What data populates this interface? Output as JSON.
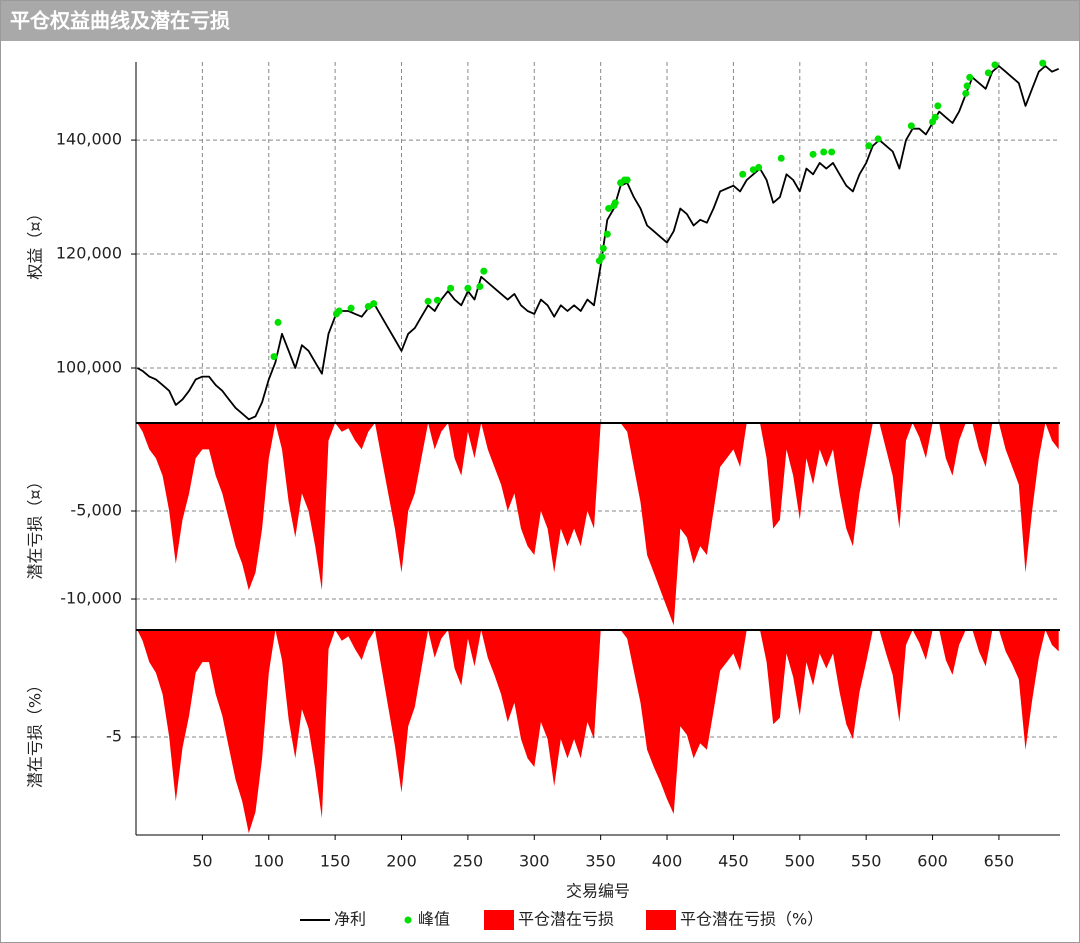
{
  "chart_data": [
    {
      "type": "line",
      "title": "平仓权益曲线及潜在亏损",
      "ylabel": "权益（¤）",
      "xlim": [
        0,
        696
      ],
      "xticks": [
        50,
        100,
        150,
        200,
        250,
        300,
        350,
        400,
        450,
        500,
        550,
        600,
        650
      ],
      "xgrid": true,
      "ylim": [
        90350,
        153700
      ],
      "yticks": [
        {
          "value": 100000,
          "label": "100,000"
        },
        {
          "value": 120000,
          "label": "120,000"
        },
        {
          "value": 140000,
          "label": "140,000"
        }
      ],
      "grid": true,
      "series": [
        {
          "name": "净利",
          "type": "line",
          "color": "#000000",
          "x": [
            1,
            5,
            10,
            15,
            20,
            25,
            30,
            35,
            40,
            45,
            50,
            55,
            60,
            65,
            70,
            75,
            80,
            85,
            90,
            95,
            100,
            105,
            110,
            115,
            120,
            125,
            130,
            135,
            140,
            145,
            150,
            155,
            160,
            165,
            170,
            175,
            180,
            185,
            190,
            195,
            200,
            205,
            210,
            215,
            220,
            225,
            230,
            235,
            240,
            245,
            250,
            255,
            260,
            265,
            270,
            275,
            280,
            285,
            290,
            295,
            300,
            305,
            310,
            315,
            320,
            325,
            330,
            335,
            340,
            345,
            350,
            355,
            360,
            365,
            370,
            375,
            380,
            385,
            390,
            395,
            400,
            405,
            410,
            415,
            420,
            425,
            430,
            435,
            440,
            445,
            450,
            455,
            460,
            465,
            470,
            475,
            480,
            485,
            490,
            495,
            500,
            505,
            510,
            515,
            520,
            525,
            530,
            535,
            540,
            545,
            550,
            555,
            560,
            565,
            570,
            575,
            580,
            585,
            590,
            595,
            600,
            605,
            610,
            615,
            620,
            625,
            630,
            635,
            640,
            645,
            650,
            655,
            660,
            665,
            670,
            675,
            680,
            685,
            690,
            695
          ],
          "values": [
            100000,
            99500,
            98500,
            98000,
            97000,
            96000,
            93500,
            94500,
            96000,
            98000,
            98500,
            98500,
            97000,
            96000,
            94500,
            93000,
            92000,
            91000,
            91500,
            94000,
            98000,
            101000,
            106000,
            103000,
            100000,
            104000,
            103000,
            101000,
            99000,
            106000,
            109000,
            110000,
            110000,
            109500,
            109000,
            110500,
            111000,
            109000,
            107000,
            105000,
            103000,
            106000,
            107000,
            109000,
            111000,
            110000,
            112000,
            113500,
            112000,
            111000,
            113500,
            112000,
            116000,
            115000,
            114000,
            113000,
            112000,
            113000,
            111000,
            110000,
            109500,
            112000,
            111000,
            109000,
            111000,
            110000,
            111000,
            110000,
            112000,
            111000,
            118000,
            126000,
            128000,
            132000,
            132500,
            130000,
            128000,
            125000,
            124000,
            123000,
            122000,
            124000,
            128000,
            127000,
            125000,
            126000,
            125500,
            128000,
            131000,
            131500,
            132000,
            131000,
            133000,
            134000,
            135000,
            133000,
            129000,
            130000,
            134000,
            133000,
            131000,
            135000,
            134000,
            136000,
            135000,
            136000,
            134000,
            132000,
            131000,
            134000,
            136000,
            139000,
            140000,
            139000,
            138000,
            135000,
            140000,
            142000,
            142000,
            141000,
            143000,
            145000,
            144000,
            143000,
            145000,
            148000,
            151000,
            150000,
            149000,
            152000,
            153000,
            152000,
            151000,
            150000,
            146000,
            149000,
            152000,
            153000,
            152000,
            152500
          ]
        },
        {
          "name": "峰值",
          "type": "scatter",
          "color": "#00e000",
          "x": [
            104,
            107,
            151,
            153,
            162,
            175,
            179,
            220,
            227,
            237,
            250,
            259,
            262,
            349,
            351,
            352,
            355,
            356,
            360,
            361,
            365,
            368,
            370,
            457,
            465,
            469,
            486,
            510,
            518,
            524,
            552,
            559,
            584,
            600,
            602,
            604,
            625,
            626,
            628,
            642,
            647,
            683
          ],
          "values": [
            102000,
            108000,
            109500,
            110000,
            110500,
            110800,
            111300,
            111700,
            111900,
            114000,
            114000,
            114300,
            117000,
            118800,
            119500,
            121000,
            123500,
            128000,
            128500,
            129000,
            132500,
            133000,
            133000,
            134000,
            134800,
            135200,
            136800,
            137500,
            137900,
            137900,
            139000,
            140200,
            142500,
            143200,
            144000,
            146000,
            148200,
            149500,
            151000,
            151800,
            153200,
            153500
          ]
        }
      ]
    },
    {
      "type": "area",
      "ylabel": "潜在亏损（¤）",
      "xlim": [
        0,
        696
      ],
      "xticks": [
        50,
        100,
        150,
        200,
        250,
        300,
        350,
        400,
        450,
        500,
        550,
        600,
        650
      ],
      "ylim": [
        -11760,
        0
      ],
      "yticks": [
        {
          "value": -5000,
          "label": "-5,000"
        },
        {
          "value": -10000,
          "label": "-10,000"
        }
      ],
      "grid": true,
      "series": [
        {
          "name": "平仓潜在亏损",
          "type": "area",
          "color": "#ff0000",
          "x": [
            1,
            5,
            10,
            15,
            20,
            25,
            30,
            35,
            40,
            45,
            50,
            55,
            60,
            65,
            70,
            75,
            80,
            85,
            90,
            95,
            100,
            105,
            110,
            115,
            120,
            125,
            130,
            135,
            140,
            145,
            150,
            155,
            160,
            165,
            170,
            175,
            180,
            185,
            190,
            195,
            200,
            205,
            210,
            215,
            220,
            225,
            230,
            235,
            240,
            245,
            250,
            255,
            260,
            265,
            270,
            275,
            280,
            285,
            290,
            295,
            300,
            305,
            310,
            315,
            320,
            325,
            330,
            335,
            340,
            345,
            350,
            355,
            360,
            365,
            370,
            375,
            380,
            385,
            390,
            395,
            400,
            405,
            410,
            415,
            420,
            425,
            430,
            435,
            440,
            445,
            450,
            455,
            460,
            465,
            470,
            475,
            480,
            485,
            490,
            495,
            500,
            505,
            510,
            515,
            520,
            525,
            530,
            535,
            540,
            545,
            550,
            555,
            560,
            565,
            570,
            575,
            580,
            585,
            590,
            595,
            600,
            605,
            610,
            615,
            620,
            625,
            630,
            635,
            640,
            645,
            650,
            655,
            660,
            665,
            670,
            675,
            680,
            685,
            690,
            695
          ],
          "values": [
            0,
            -500,
            -1500,
            -2000,
            -3000,
            -5000,
            -8000,
            -5500,
            -4000,
            -2000,
            -1500,
            -1500,
            -3000,
            -4000,
            -5500,
            -7000,
            -8000,
            -9500,
            -8500,
            -6000,
            -2000,
            0,
            -1500,
            -4500,
            -6500,
            -4000,
            -5000,
            -7000,
            -9500,
            -1000,
            0,
            -500,
            -300,
            -1000,
            -1500,
            -500,
            0,
            -2000,
            -4000,
            -6000,
            -8500,
            -5000,
            -4000,
            -2000,
            0,
            -1500,
            -500,
            0,
            -2000,
            -3000,
            -500,
            -2000,
            0,
            -1500,
            -2500,
            -3500,
            -5000,
            -4000,
            -6000,
            -7000,
            -7500,
            -5000,
            -6000,
            -8500,
            -6000,
            -7000,
            -6000,
            -7000,
            -5000,
            -6000,
            0,
            0,
            0,
            0,
            -500,
            -2500,
            -4500,
            -7500,
            -8500,
            -9500,
            -10500,
            -11500,
            -6000,
            -6500,
            -8000,
            -7000,
            -7500,
            -5000,
            -2500,
            -2000,
            -1500,
            -2500,
            0,
            0,
            0,
            -2000,
            -6000,
            -5500,
            -1500,
            -3000,
            -5500,
            -2000,
            -3500,
            -1500,
            -2500,
            -1500,
            -4000,
            -6000,
            -7000,
            -4000,
            -2000,
            0,
            0,
            -1500,
            -3000,
            -6000,
            -1000,
            0,
            -800,
            -2000,
            0,
            0,
            -2000,
            -3000,
            -1000,
            0,
            0,
            -1500,
            -2500,
            0,
            0,
            -1500,
            -2500,
            -3500,
            -8500,
            -5000,
            -2000,
            0,
            -1000,
            -1500
          ]
        }
      ]
    },
    {
      "type": "area",
      "ylabel": "潜在亏损（%）",
      "xlabel": "交易编号",
      "xlim": [
        0,
        696
      ],
      "xticks": [
        50,
        100,
        150,
        200,
        250,
        300,
        350,
        400,
        450,
        500,
        550,
        600,
        650
      ],
      "xtick_labels": true,
      "ylim": [
        -9.58,
        0
      ],
      "yticks": [
        -5
      ],
      "grid": true,
      "series": [
        {
          "name": "平仓潜在亏损（%）",
          "type": "area",
          "color": "#ff0000",
          "x": [
            1,
            5,
            10,
            15,
            20,
            25,
            30,
            35,
            40,
            45,
            50,
            55,
            60,
            65,
            70,
            75,
            80,
            85,
            90,
            95,
            100,
            105,
            110,
            115,
            120,
            125,
            130,
            135,
            140,
            145,
            150,
            155,
            160,
            165,
            170,
            175,
            180,
            185,
            190,
            195,
            200,
            205,
            210,
            215,
            220,
            225,
            230,
            235,
            240,
            245,
            250,
            255,
            260,
            265,
            270,
            275,
            280,
            285,
            290,
            295,
            300,
            305,
            310,
            315,
            320,
            325,
            330,
            335,
            340,
            345,
            350,
            355,
            360,
            365,
            370,
            375,
            380,
            385,
            390,
            395,
            400,
            405,
            410,
            415,
            420,
            425,
            430,
            435,
            440,
            445,
            450,
            455,
            460,
            465,
            470,
            475,
            480,
            485,
            490,
            495,
            500,
            505,
            510,
            515,
            520,
            525,
            530,
            535,
            540,
            545,
            550,
            555,
            560,
            565,
            570,
            575,
            580,
            585,
            590,
            595,
            600,
            605,
            610,
            615,
            620,
            625,
            630,
            635,
            640,
            645,
            650,
            655,
            660,
            665,
            670,
            675,
            680,
            685,
            690,
            695
          ],
          "values": [
            0,
            -0.5,
            -1.5,
            -2,
            -3,
            -5,
            -8,
            -5.5,
            -4,
            -2,
            -1.5,
            -1.5,
            -3,
            -4,
            -5.5,
            -7,
            -8,
            -9.5,
            -8.5,
            -6,
            -2,
            0,
            -1.4,
            -4.2,
            -6,
            -3.7,
            -4.6,
            -6.5,
            -8.8,
            -0.9,
            0,
            -0.5,
            -0.3,
            -0.9,
            -1.4,
            -0.5,
            0,
            -1.8,
            -3.6,
            -5.4,
            -7.6,
            -4.5,
            -3.6,
            -1.8,
            0,
            -1.3,
            -0.4,
            0,
            -1.8,
            -2.6,
            -0.4,
            -1.7,
            0,
            -1.3,
            -2.1,
            -3,
            -4.3,
            -3.4,
            -5.1,
            -6,
            -6.4,
            -4.3,
            -5.1,
            -7.3,
            -5.1,
            -6,
            -5.1,
            -6,
            -4.3,
            -5.1,
            0,
            0,
            0,
            0,
            -0.4,
            -1.9,
            -3.4,
            -5.6,
            -6.4,
            -7.1,
            -7.9,
            -8.6,
            -4.5,
            -4.9,
            -6,
            -5.3,
            -5.6,
            -3.8,
            -1.9,
            -1.5,
            -1.1,
            -1.9,
            0,
            0,
            0,
            -1.5,
            -4.4,
            -4.1,
            -1.1,
            -2.2,
            -4,
            -1.5,
            -2.6,
            -1.1,
            -1.8,
            -1.1,
            -2.9,
            -4.4,
            -5.1,
            -2.9,
            -1.5,
            0,
            0,
            -1.1,
            -2.1,
            -4.3,
            -0.7,
            0,
            -0.6,
            -1.4,
            0,
            0,
            -1.4,
            -2.1,
            -0.7,
            0,
            0,
            -1,
            -1.7,
            0,
            0,
            -1,
            -1.6,
            -2.3,
            -5.6,
            -3.3,
            -1.3,
            0,
            -0.7,
            -1
          ]
        }
      ]
    }
  ]
}
